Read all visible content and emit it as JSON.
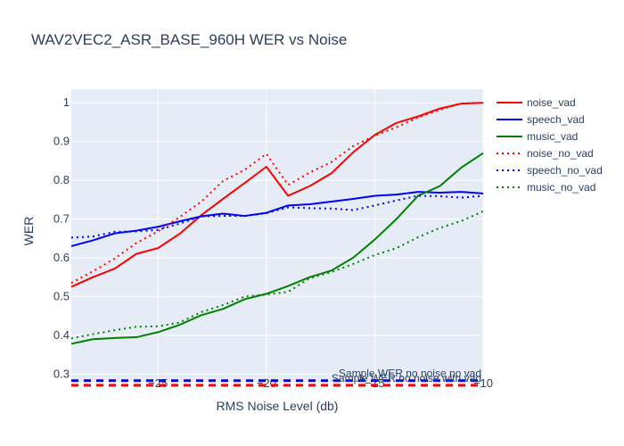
{
  "chart_data": {
    "type": "line",
    "title": "WAV2VEC2_ASR_BASE_960H WER vs Noise",
    "xlabel": "RMS Noise Level (db)",
    "ylabel": "WER",
    "xlim": [
      -29,
      -10
    ],
    "ylim": [
      0.28,
      1.035
    ],
    "x_ticks": [
      -25,
      -20,
      -15,
      -10
    ],
    "x_tick_labels": [
      "−25",
      "−20",
      "−15",
      "−10"
    ],
    "y_ticks": [
      0.3,
      0.4,
      0.5,
      0.6,
      0.7,
      0.8,
      0.9,
      1
    ],
    "y_tick_labels": [
      "0.3",
      "0.4",
      "0.5",
      "0.6",
      "0.7",
      "0.8",
      "0.9",
      "1"
    ],
    "grid": true,
    "legend_position": "right",
    "x": [
      -29,
      -28,
      -27,
      -26,
      -25,
      -24,
      -23,
      -22,
      -21,
      -20,
      -19,
      -18,
      -17,
      -16,
      -15,
      -14,
      -13,
      -12,
      -11,
      -10
    ],
    "series": [
      {
        "name": "noise_vad",
        "color": "#ff0000",
        "dash": "solid",
        "values": [
          0.525,
          0.55,
          0.572,
          0.61,
          0.625,
          0.662,
          0.71,
          0.752,
          0.793,
          0.835,
          0.76,
          0.785,
          0.818,
          0.872,
          0.917,
          0.948,
          0.965,
          0.985,
          0.998,
          1.0
        ]
      },
      {
        "name": "speech_vad",
        "color": "#0000ff",
        "dash": "solid",
        "values": [
          0.63,
          0.645,
          0.663,
          0.67,
          0.68,
          0.694,
          0.707,
          0.714,
          0.708,
          0.716,
          0.735,
          0.738,
          0.745,
          0.752,
          0.76,
          0.763,
          0.77,
          0.768,
          0.77,
          0.766
        ]
      },
      {
        "name": "music_vad",
        "color": "#008000",
        "dash": "solid",
        "values": [
          0.378,
          0.39,
          0.393,
          0.395,
          0.408,
          0.427,
          0.452,
          0.468,
          0.493,
          0.507,
          0.527,
          0.55,
          0.567,
          0.6,
          0.647,
          0.7,
          0.76,
          0.785,
          0.833,
          0.87
        ]
      },
      {
        "name": "noise_no_vad",
        "color": "#ff0000",
        "dash": "dot",
        "values": [
          0.535,
          0.565,
          0.598,
          0.638,
          0.668,
          0.705,
          0.745,
          0.798,
          0.827,
          0.868,
          0.788,
          0.82,
          0.847,
          0.888,
          0.915,
          0.937,
          0.962,
          0.982,
          0.998,
          1.0
        ]
      },
      {
        "name": "speech_no_vad",
        "color": "#0000ff",
        "dash": "dot",
        "values": [
          0.652,
          0.655,
          0.667,
          0.668,
          0.672,
          0.688,
          0.707,
          0.708,
          0.708,
          0.715,
          0.73,
          0.728,
          0.727,
          0.723,
          0.735,
          0.748,
          0.76,
          0.759,
          0.755,
          0.76
        ]
      },
      {
        "name": "music_no_vad",
        "color": "#008000",
        "dash": "dot",
        "values": [
          0.392,
          0.403,
          0.413,
          0.422,
          0.423,
          0.433,
          0.46,
          0.478,
          0.5,
          0.505,
          0.512,
          0.547,
          0.563,
          0.584,
          0.607,
          0.625,
          0.653,
          0.677,
          0.695,
          0.72
        ]
      }
    ],
    "reference_lines": [
      {
        "label": "Sample WER no noise no vad",
        "y": 0.283,
        "color": "#0000ff",
        "dash": "dash"
      },
      {
        "label": "Sample WER no noise with vad",
        "y": 0.271,
        "color": "#ff0000",
        "dash": "dash"
      }
    ]
  }
}
